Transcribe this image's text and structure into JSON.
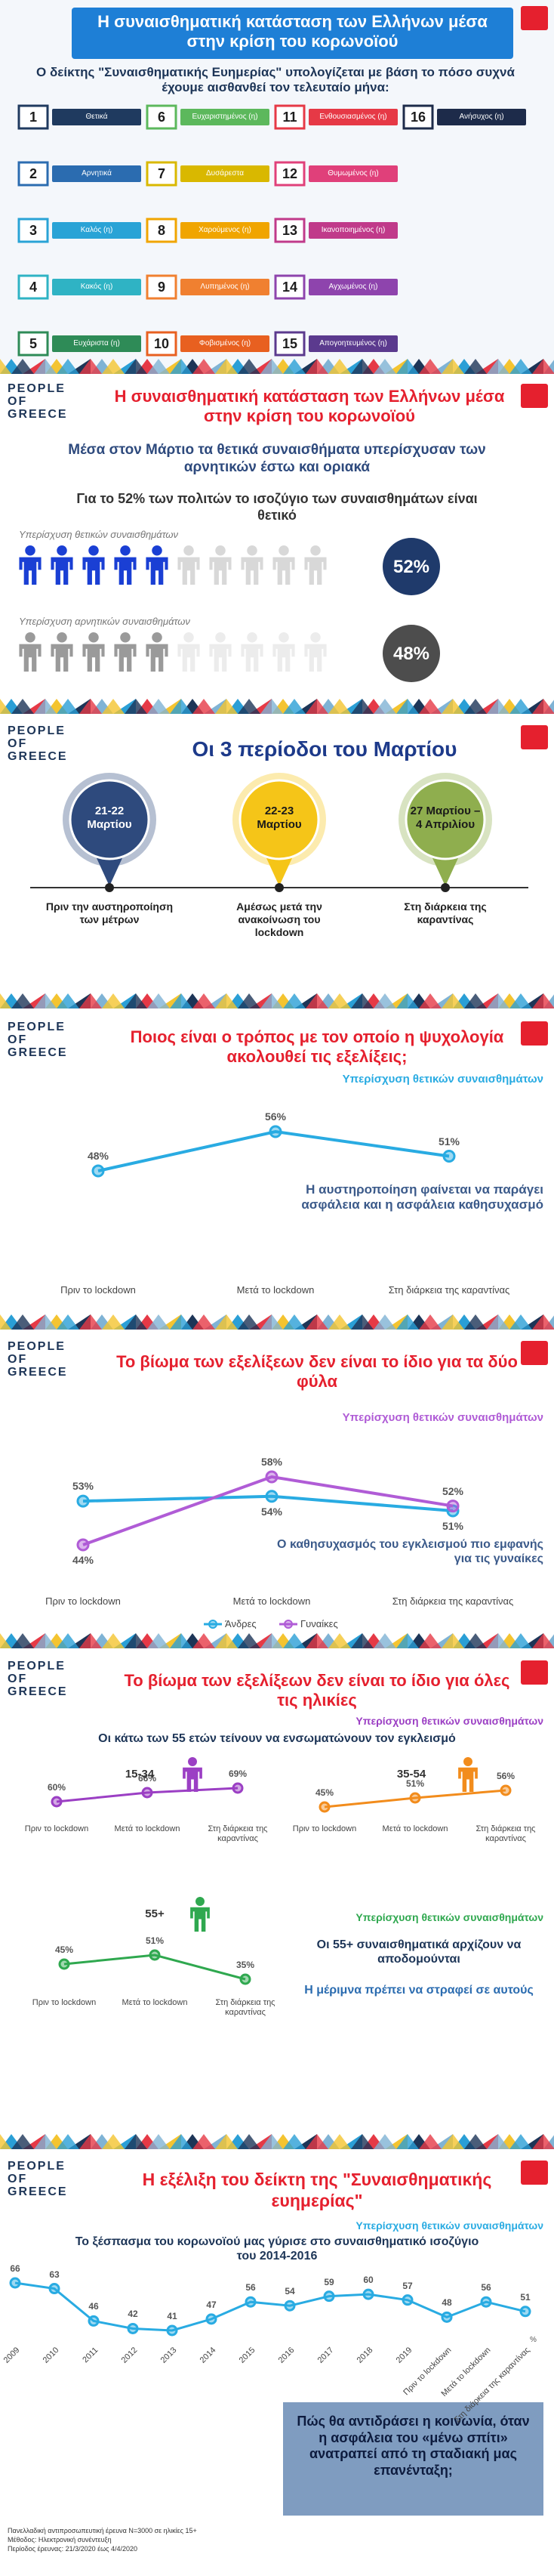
{
  "logo": [
    "PEOPLE",
    "OF",
    "GREECE"
  ],
  "slide1": {
    "title": "Η συναισθηματική κατάσταση των Ελλήνων μέσα στην κρίση του κορωνοϊού",
    "intro": "Ο δείκτης \"Συναισθηματικής Ευημερίας\" υπολογίζεται με βάση το πόσο συχνά έχουμε αισθανθεί τον τελευταίο μήνα:",
    "items": [
      {
        "number": "1",
        "label": "Θετικά",
        "color": "#1f3a5f"
      },
      {
        "number": "2",
        "label": "Αρνητικά",
        "color": "#2b6cb0"
      },
      {
        "number": "3",
        "label": "Καλός (η)",
        "color": "#29a3d6"
      },
      {
        "number": "4",
        "label": "Κακός (η)",
        "color": "#2fb3c4"
      },
      {
        "number": "5",
        "label": "Ευχάριστα (η)",
        "color": "#2e8b57"
      },
      {
        "number": "6",
        "label": "Ευχαριστημένος (η)",
        "color": "#5cb85c"
      },
      {
        "number": "7",
        "label": "Δυσάρεστα",
        "color": "#d9b800"
      },
      {
        "number": "8",
        "label": "Χαρούμενος (η)",
        "color": "#f0a500"
      },
      {
        "number": "9",
        "label": "Λυπημένος (η)",
        "color": "#f08030"
      },
      {
        "number": "10",
        "label": "Φοβισμένος (η)",
        "color": "#e86020"
      },
      {
        "number": "11",
        "label": "Ενθουσιασμένος (η)",
        "color": "#e63946"
      },
      {
        "number": "12",
        "label": "Θυμωμένος (η)",
        "color": "#e0407a"
      },
      {
        "number": "13",
        "label": "Ικανοποιημένος (η)",
        "color": "#c03a8a"
      },
      {
        "number": "14",
        "label": "Αγχωμένος (η)",
        "color": "#8e44ad"
      },
      {
        "number": "15",
        "label": "Απογοητευμένος (η)",
        "color": "#5b3a8e"
      },
      {
        "number": "16",
        "label": "Ανήσυχος (η)",
        "color": "#1d2b4a"
      }
    ]
  },
  "slide2": {
    "title": "Η συναισθηματική κατάσταση των Ελλήνων μέσα στην κρίση του κορωνοϊού",
    "heading": "Μέσα στον Μάρτιο τα θετικά συναισθήματα υπερίσχυσαν των αρνητικών έστω και οριακά",
    "subheading": "Για το 52% των πολιτών το ισοζύγιο των συναισθημάτων είναι θετικό",
    "rows": [
      {
        "label": "Υπερίσχυση θετικών συναισθημάτων",
        "value": 52,
        "value_label": "52%",
        "color": "#1f3a6b"
      },
      {
        "label": "Υπερίσχυση αρνητικών συναισθημάτων",
        "value": 48,
        "value_label": "48%",
        "color": "#4d4d4d"
      }
    ]
  },
  "slide3": {
    "title": "Οι 3 περίοδοι του Μαρτίου",
    "periods": [
      {
        "dates": "21-22 Μαρτίου",
        "description": "Πριν την αυστηροποίηση των μέτρων",
        "color": "#2e4a7d"
      },
      {
        "dates": "22-23 Μαρτίου",
        "description": "Αμέσως μετά την ανακοίνωση του lockdown",
        "color": "#f5c518"
      },
      {
        "dates": "27 Μαρτίου – 4 Απριλίου",
        "description": "Στη διάρκεια της καραντίνας",
        "color": "#8fae4e"
      }
    ]
  },
  "slide4": {
    "chart_data": {
      "type": "line",
      "title": "Ποιος είναι ο τρόπος με τον οποίο η ψυχολογία ακολουθεί τις εξελίξεις;",
      "annotation": "Η αυστηροποίηση φαίνεται να παράγει ασφάλεια και η ασφάλεια καθησυχασμό",
      "categories": [
        "Πριν το lockdown",
        "Μετά το lockdown",
        "Στη διάρκεια της καραντίνας"
      ],
      "series": [
        {
          "name": "Υπερίσχυση θετικών συναισθημάτων",
          "color": "#29abe2",
          "values": [
            48,
            56,
            51
          ],
          "value_labels": [
            "48%",
            "56%",
            "51%"
          ]
        }
      ]
    }
  },
  "slide5": {
    "chart_data": {
      "type": "line",
      "title": "Το βίωμα των εξελίξεων δεν είναι το ίδιο για τα δύο φύλα",
      "subtitle": "Υπερίσχυση θετικών συναισθημάτων",
      "annotation": "Ο καθησυχασμός του εγκλεισμού πιο εμφανής για τις γυναίκες",
      "categories": [
        "Πριν το lockdown",
        "Μετά το lockdown",
        "Στη διάρκεια της καραντίνας"
      ],
      "series": [
        {
          "name": "Άνδρες",
          "color": "#29abe2",
          "values": [
            53,
            54,
            51
          ],
          "value_labels": [
            "53%",
            "54%",
            "51%"
          ]
        },
        {
          "name": "Γυναίκες",
          "color": "#b05cd6",
          "values": [
            44,
            58,
            52
          ],
          "value_labels": [
            "44%",
            "58%",
            "52%"
          ]
        }
      ]
    }
  },
  "slide6": {
    "title": "Το βίωμα των εξελίξεων δεν είναι το ίδιο για όλες τις ηλικίες",
    "subtitle": "Υπερίσχυση θετικών συναισθημάτων",
    "heading": "Οι κάτω των 55 ετών τείνουν να ενσωματώνουν τον εγκλεισμό",
    "subtitle_55": "Υπερίσχυση θετικών συναισθημάτων",
    "note_55": "Οι 55+ συναισθηματικά αρχίζουν να αποδομούνται",
    "note_care": "Η μέριμνα πρέπει να στραφεί σε αυτούς",
    "chart_data": [
      {
        "type": "line",
        "categories": [
          "Πριν το lockdown",
          "Μετά το lockdown",
          "Στη διάρκεια της καραντίνας"
        ],
        "series": [
          {
            "name": "15-34",
            "color": "#9b3fc4",
            "values": [
              60,
              66,
              69
            ],
            "value_labels": [
              "60%",
              "66%",
              "69%"
            ]
          }
        ]
      },
      {
        "type": "line",
        "categories": [
          "Πριν το lockdown",
          "Μετά το lockdown",
          "Στη διάρκεια της καραντίνας"
        ],
        "series": [
          {
            "name": "35-54",
            "color": "#f28c1c",
            "values": [
              45,
              51,
              56
            ],
            "value_labels": [
              "45%",
              "51%",
              "56%"
            ]
          }
        ]
      },
      {
        "type": "line",
        "categories": [
          "Πριν το lockdown",
          "Μετά το lockdown",
          "Στη διάρκεια της καραντίνας"
        ],
        "series": [
          {
            "name": "55+",
            "color": "#2fa84f",
            "values": [
              45,
              51,
              35
            ],
            "value_labels": [
              "45%",
              "51%",
              "35%"
            ]
          }
        ]
      }
    ]
  },
  "slide7": {
    "chart_data": {
      "type": "line",
      "title": "Η εξέλιξη του δείκτη της \"Συναισθηματικής ευημερίας\"",
      "subtitle": "Υπερίσχυση θετικών συναισθημάτων",
      "heading": "Το ξέσπασμα του κορωνοϊού μας γύρισε στο συναισθηματικό ισοζύγιο του 2014-2016",
      "y_label": "%",
      "categories": [
        "2009",
        "2010",
        "2011",
        "2012",
        "2013",
        "2014",
        "2015",
        "2016",
        "2017",
        "2018",
        "2019",
        "Πριν το lockdown",
        "Μετά το lockdown",
        "Στη διάρκεια της καραντίνας"
      ],
      "series": [
        {
          "name": "Υπερίσχυση θετικών συναισθημάτων",
          "color": "#29abe2",
          "values": [
            66,
            63,
            46,
            42,
            41,
            47,
            56,
            54,
            59,
            60,
            57,
            48,
            56,
            51
          ]
        }
      ]
    },
    "question": "Πώς θα αντιδράσει η κοινωνία, όταν η ασφάλεια του «μένω σπίτι» ανατραπεί από τη σταδιακή μας επανένταξη;",
    "footer": [
      "Πανελλαδική αντιπροσωπευτική έρευνα Ν=3000 σε ηλικίες 15+",
      "Μέθοδος: Ηλεκτρονική συνέντευξη",
      "Περίοδος έρευνας: 21/3/2020 έως 4/4/2020"
    ]
  }
}
